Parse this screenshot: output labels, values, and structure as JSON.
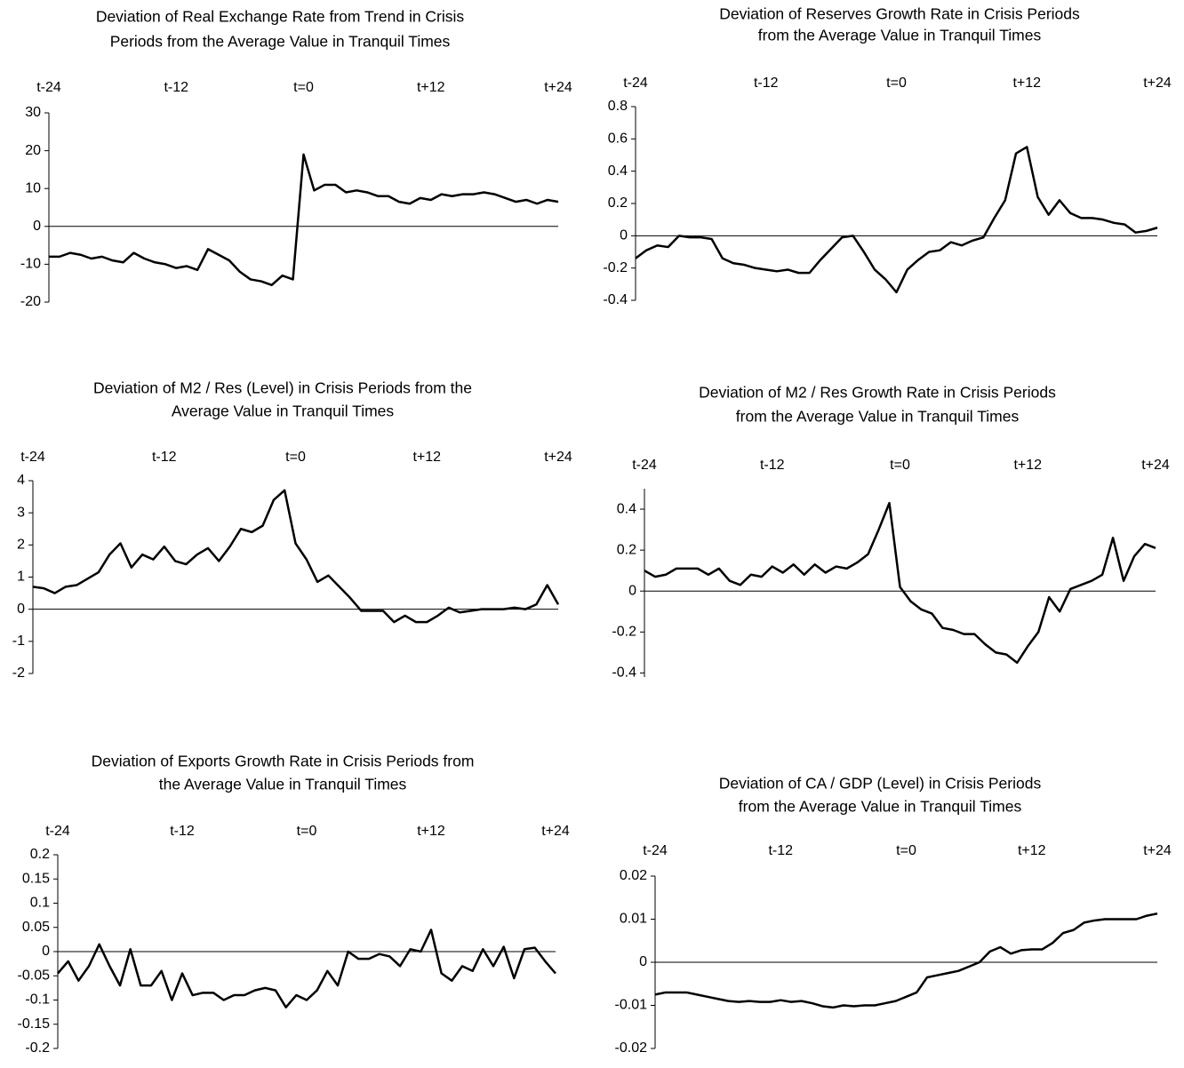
{
  "chart_data": [
    {
      "type": "line",
      "title": [
        "Deviation of Real Exchange Rate from Trend in Crisis",
        "Periods from the Average Value in Tranquil Times"
      ],
      "x": [
        -24,
        -23,
        -22,
        -21,
        -20,
        -19,
        -18,
        -17,
        -16,
        -15,
        -14,
        -13,
        -12,
        -11,
        -10,
        -9,
        -8,
        -7,
        -6,
        -5,
        -4,
        -3,
        -2,
        -1,
        0,
        1,
        2,
        3,
        4,
        5,
        6,
        7,
        8,
        9,
        10,
        11,
        12,
        13,
        14,
        15,
        16,
        17,
        18,
        19,
        20,
        21,
        22,
        23,
        24
      ],
      "values": [
        -8,
        -8,
        -7,
        -7.5,
        -8.5,
        -8,
        -9,
        -9.5,
        -7,
        -8.5,
        -9.5,
        -10,
        -11,
        -10.5,
        -11.5,
        -6,
        -7.5,
        -9,
        -12,
        -14,
        -14.5,
        -15.5,
        -13,
        -14,
        19,
        9.5,
        11,
        11,
        9,
        9.5,
        9,
        8,
        8,
        6.5,
        6,
        7.5,
        7,
        8.5,
        8,
        8.5,
        8.5,
        9,
        8.5,
        7.5,
        6.5,
        7,
        6,
        7,
        6.5
      ],
      "xlim": [
        -24,
        24
      ],
      "xticks": [
        {
          "value": -24,
          "label": "t-24"
        },
        {
          "value": -12,
          "label": "t-12"
        },
        {
          "value": 0,
          "label": "t=0"
        },
        {
          "value": 12,
          "label": "t+12"
        },
        {
          "value": 24,
          "label": "t+24"
        }
      ],
      "ylim": [
        -20,
        30
      ],
      "yticks": [
        -20,
        -10,
        0,
        10,
        20,
        30
      ],
      "color": "#000000"
    },
    {
      "type": "line",
      "title": [
        "Deviation of Reserves Growth Rate in Crisis Periods",
        "from the Average Value in Tranquil Times"
      ],
      "x": [
        -24,
        -23,
        -22,
        -21,
        -20,
        -19,
        -18,
        -17,
        -16,
        -15,
        -14,
        -13,
        -12,
        -11,
        -10,
        -9,
        -8,
        -7,
        -6,
        -5,
        -4,
        -3,
        -2,
        -1,
        0,
        1,
        2,
        3,
        4,
        5,
        6,
        7,
        8,
        9,
        10,
        11,
        12,
        13,
        14,
        15,
        16,
        17,
        18,
        19,
        20,
        21,
        22,
        23,
        24
      ],
      "values": [
        -0.14,
        -0.09,
        -0.06,
        -0.07,
        0.0,
        -0.01,
        -0.01,
        -0.02,
        -0.14,
        -0.17,
        -0.18,
        -0.2,
        -0.21,
        -0.22,
        -0.21,
        -0.23,
        -0.23,
        -0.15,
        -0.08,
        -0.01,
        0.0,
        -0.1,
        -0.21,
        -0.27,
        -0.35,
        -0.21,
        -0.15,
        -0.1,
        -0.09,
        -0.04,
        -0.06,
        -0.03,
        -0.01,
        0.11,
        0.22,
        0.51,
        0.55,
        0.24,
        0.13,
        0.22,
        0.14,
        0.11,
        0.11,
        0.1,
        0.08,
        0.07,
        0.02,
        0.03,
        0.05
      ],
      "xlim": [
        -24,
        24
      ],
      "xticks": [
        {
          "value": -24,
          "label": "t-24"
        },
        {
          "value": -12,
          "label": "t-12"
        },
        {
          "value": 0,
          "label": "t=0"
        },
        {
          "value": 12,
          "label": "t+12"
        },
        {
          "value": 24,
          "label": "t+24"
        }
      ],
      "ylim": [
        -0.4,
        0.8
      ],
      "yticks": [
        -0.4,
        -0.2,
        0,
        0.2,
        0.4,
        0.6,
        0.8
      ],
      "color": "#000000"
    },
    {
      "type": "line",
      "title": [
        "Deviation of M2 / Res (Level) in Crisis Periods from the",
        "Average Value in Tranquil Times"
      ],
      "x": [
        -24,
        -23,
        -22,
        -21,
        -20,
        -19,
        -18,
        -17,
        -16,
        -15,
        -14,
        -13,
        -12,
        -11,
        -10,
        -9,
        -8,
        -7,
        -6,
        -5,
        -4,
        -3,
        -2,
        -1,
        0,
        1,
        2,
        3,
        4,
        5,
        6,
        7,
        8,
        9,
        10,
        11,
        12,
        13,
        14,
        15,
        16,
        17,
        18,
        19,
        20,
        21,
        22,
        23,
        24
      ],
      "values": [
        0.7,
        0.65,
        0.5,
        0.7,
        0.75,
        0.95,
        1.15,
        1.7,
        2.05,
        1.3,
        1.7,
        1.55,
        1.95,
        1.5,
        1.4,
        1.7,
        1.9,
        1.5,
        1.95,
        2.5,
        2.4,
        2.6,
        3.4,
        3.7,
        2.05,
        1.55,
        0.85,
        1.05,
        0.7,
        0.35,
        -0.05,
        -0.05,
        -0.05,
        -0.4,
        -0.2,
        -0.4,
        -0.4,
        -0.2,
        0.05,
        -0.1,
        -0.05,
        0,
        0,
        0,
        0.05,
        0,
        0.15,
        0.75,
        0.15
      ],
      "xlim": [
        -24,
        24
      ],
      "xticks": [
        {
          "value": -24,
          "label": "t-24"
        },
        {
          "value": -12,
          "label": "t-12"
        },
        {
          "value": 0,
          "label": "t=0"
        },
        {
          "value": 12,
          "label": "t+12"
        },
        {
          "value": 24,
          "label": "t+24"
        }
      ],
      "ylim": [
        -2,
        4
      ],
      "yticks": [
        -2,
        -1,
        0,
        1,
        2,
        3,
        4
      ],
      "color": "#000000"
    },
    {
      "type": "line",
      "title": [
        "Deviation of M2 / Res Growth Rate  in Crisis Periods",
        "from the Average Value in Tranquil Times"
      ],
      "x": [
        -24,
        -23,
        -22,
        -21,
        -20,
        -19,
        -18,
        -17,
        -16,
        -15,
        -14,
        -13,
        -12,
        -11,
        -10,
        -9,
        -8,
        -7,
        -6,
        -5,
        -4,
        -3,
        -2,
        -1,
        0,
        1,
        2,
        3,
        4,
        5,
        6,
        7,
        8,
        9,
        10,
        11,
        12,
        13,
        14,
        15,
        16,
        17,
        18,
        19,
        20,
        21,
        22,
        23,
        24
      ],
      "values": [
        0.1,
        0.07,
        0.08,
        0.11,
        0.11,
        0.11,
        0.08,
        0.11,
        0.05,
        0.03,
        0.08,
        0.07,
        0.12,
        0.09,
        0.13,
        0.08,
        0.13,
        0.09,
        0.12,
        0.11,
        0.14,
        0.18,
        0.3,
        0.43,
        0.02,
        -0.05,
        -0.09,
        -0.11,
        -0.18,
        -0.19,
        -0.21,
        -0.21,
        -0.26,
        -0.3,
        -0.31,
        -0.35,
        -0.27,
        -0.2,
        -0.03,
        -0.1,
        0.01,
        0.03,
        0.05,
        0.08,
        0.26,
        0.05,
        0.17,
        0.23,
        0.21
      ],
      "xlim": [
        -24,
        24
      ],
      "xticks": [
        {
          "value": -24,
          "label": "t-24"
        },
        {
          "value": -12,
          "label": "t-12"
        },
        {
          "value": 0,
          "label": "t=0"
        },
        {
          "value": 12,
          "label": "t+12"
        },
        {
          "value": 24,
          "label": "t+24"
        }
      ],
      "ylim": [
        -0.42,
        0.5
      ],
      "yticks": [
        -0.4,
        -0.2,
        0,
        0.2,
        0.4
      ],
      "color": "#000000"
    },
    {
      "type": "line",
      "title": [
        "Deviation of Exports Growth Rate in Crisis Periods from",
        "the Average Value in Tranquil Times"
      ],
      "x": [
        -24,
        -23,
        -22,
        -21,
        -20,
        -19,
        -18,
        -17,
        -16,
        -15,
        -14,
        -13,
        -12,
        -11,
        -10,
        -9,
        -8,
        -7,
        -6,
        -5,
        -4,
        -3,
        -2,
        -1,
        0,
        1,
        2,
        3,
        4,
        5,
        6,
        7,
        8,
        9,
        10,
        11,
        12,
        13,
        14,
        15,
        16,
        17,
        18,
        19,
        20,
        21,
        22,
        23,
        24
      ],
      "values": [
        -0.045,
        -0.02,
        -0.06,
        -0.03,
        0.015,
        -0.03,
        -0.07,
        0.005,
        -0.07,
        -0.07,
        -0.04,
        -0.1,
        -0.045,
        -0.09,
        -0.085,
        -0.085,
        -0.1,
        -0.09,
        -0.09,
        -0.08,
        -0.075,
        -0.08,
        -0.115,
        -0.09,
        -0.1,
        -0.08,
        -0.04,
        -0.07,
        0,
        -0.015,
        -0.015,
        -0.005,
        -0.01,
        -0.03,
        0.005,
        0,
        0.045,
        -0.045,
        -0.06,
        -0.03,
        -0.04,
        0.005,
        -0.03,
        0.01,
        -0.055,
        0.005,
        0.008,
        -0.02,
        -0.045
      ],
      "xlim": [
        -24,
        24
      ],
      "xticks": [
        {
          "value": -24,
          "label": "t-24"
        },
        {
          "value": -12,
          "label": "t-12"
        },
        {
          "value": 0,
          "label": "t=0"
        },
        {
          "value": 12,
          "label": "t+12"
        },
        {
          "value": 24,
          "label": "t+24"
        }
      ],
      "ylim": [
        -0.2,
        0.2
      ],
      "yticks": [
        -0.2,
        -0.15,
        -0.1,
        -0.05,
        0,
        0.05,
        0.1,
        0.15,
        0.2
      ],
      "color": "#000000"
    },
    {
      "type": "line",
      "title": [
        "Deviation of CA / GDP (Level) in Crisis Periods",
        "from the Average Value in Tranquil Times"
      ],
      "x": [
        -24,
        -23,
        -22,
        -21,
        -20,
        -19,
        -18,
        -17,
        -16,
        -15,
        -14,
        -13,
        -12,
        -11,
        -10,
        -9,
        -8,
        -7,
        -6,
        -5,
        -4,
        -3,
        -2,
        -1,
        0,
        1,
        2,
        3,
        4,
        5,
        6,
        7,
        8,
        9,
        10,
        11,
        12,
        13,
        14,
        15,
        16,
        17,
        18,
        19,
        20,
        21,
        22,
        23,
        24
      ],
      "values": [
        -0.0075,
        -0.007,
        -0.007,
        -0.007,
        -0.0075,
        -0.008,
        -0.0085,
        -0.009,
        -0.0092,
        -0.009,
        -0.0092,
        -0.0092,
        -0.0088,
        -0.0092,
        -0.009,
        -0.0095,
        -0.0102,
        -0.0105,
        -0.01,
        -0.0102,
        -0.01,
        -0.01,
        -0.0095,
        -0.009,
        -0.008,
        -0.007,
        -0.0035,
        -0.003,
        -0.0025,
        -0.002,
        -0.001,
        0,
        0.0025,
        0.0035,
        0.002,
        0.0028,
        0.003,
        0.003,
        0.0045,
        0.0068,
        0.0075,
        0.0092,
        0.0097,
        0.01,
        0.01,
        0.01,
        0.01,
        0.0108,
        0.0113
      ],
      "xlim": [
        -24,
        24
      ],
      "xticks": [
        {
          "value": -24,
          "label": "t-24"
        },
        {
          "value": -12,
          "label": "t-12"
        },
        {
          "value": 0,
          "label": "t=0"
        },
        {
          "value": 12,
          "label": "t+12"
        },
        {
          "value": 24,
          "label": "t+24"
        }
      ],
      "ylim": [
        -0.02,
        0.02
      ],
      "yticks": [
        -0.02,
        -0.01,
        0,
        0.01,
        0.02
      ],
      "color": "#000000"
    }
  ]
}
